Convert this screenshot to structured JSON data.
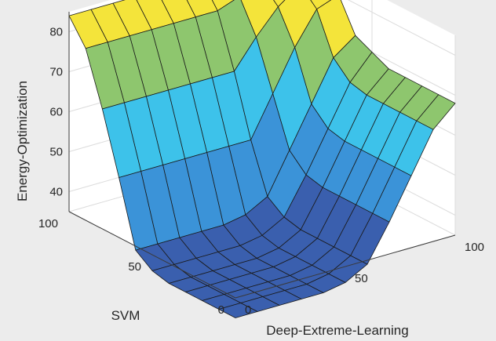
{
  "chart_data": {
    "type": "surface",
    "title": "",
    "xlabel": "Deep-Extreme-Learning",
    "ylabel": "SVM",
    "zlabel": "Energy-Optimization",
    "x_ticks": [
      "0",
      "50",
      "100"
    ],
    "y_ticks": [
      "0",
      "50",
      "100"
    ],
    "z_ticks": [
      "40",
      "50",
      "60",
      "70",
      "80"
    ],
    "xlim": [
      0,
      100
    ],
    "ylim": [
      0,
      100
    ],
    "zlim": [
      35,
      85
    ],
    "grid": true,
    "colormap": [
      "#3a5fae",
      "#3b93d8",
      "#3dc2ea",
      "#8ec66e",
      "#f4e43a"
    ],
    "x": [
      0,
      10,
      20,
      30,
      40,
      50,
      60,
      70,
      80,
      90,
      100
    ],
    "y": [
      0,
      10,
      20,
      30,
      40,
      50,
      60,
      70,
      80,
      90,
      100
    ],
    "z": [
      [
        30,
        30,
        30,
        30,
        30,
        31,
        34,
        43,
        53,
        63,
        68
      ],
      [
        30,
        30,
        30,
        30,
        30,
        31,
        34,
        43,
        53,
        63,
        68
      ],
      [
        30,
        30,
        30,
        30,
        30,
        31,
        34,
        43,
        53,
        63,
        68
      ],
      [
        30,
        30,
        30,
        30,
        30,
        31,
        34,
        43,
        53,
        63,
        68
      ],
      [
        30,
        30,
        30,
        30,
        30,
        31,
        34,
        43,
        53,
        63,
        68
      ],
      [
        31,
        31,
        31,
        31,
        31,
        32,
        35,
        44,
        54,
        64,
        70
      ],
      [
        34,
        34,
        34,
        34,
        34,
        35,
        38,
        48,
        58,
        68,
        72
      ],
      [
        50,
        50,
        50,
        50,
        50,
        50,
        50,
        60,
        70,
        78,
        80
      ],
      [
        65,
        65,
        65,
        65,
        65,
        65,
        65,
        72,
        78,
        82,
        83
      ],
      [
        78,
        78,
        78,
        78,
        78,
        78,
        78,
        80,
        82,
        83,
        84
      ],
      [
        84,
        84,
        84,
        84,
        84,
        84,
        84,
        84,
        84,
        84,
        84
      ]
    ]
  }
}
